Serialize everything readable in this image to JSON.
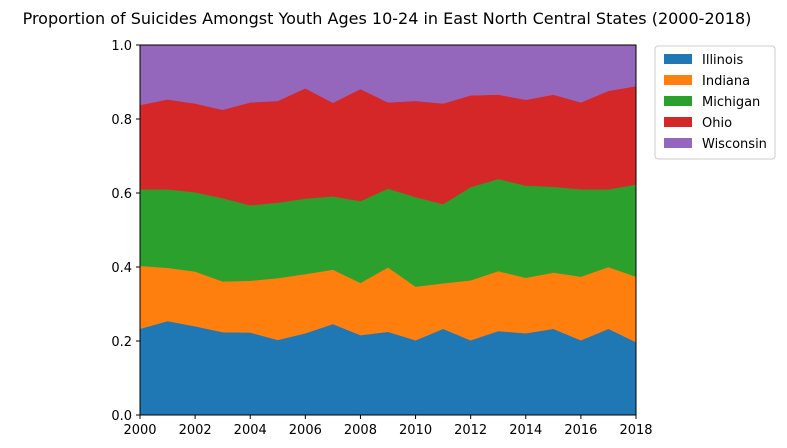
{
  "chart_data": {
    "type": "area",
    "stacked": true,
    "title": "Proportion of Suicides Amongst Youth Ages 10-24 in East North Central States (2000-2018)",
    "xlabel": "",
    "ylabel": "",
    "x": [
      2000,
      2001,
      2002,
      2003,
      2004,
      2005,
      2006,
      2007,
      2008,
      2009,
      2010,
      2011,
      2012,
      2013,
      2014,
      2015,
      2016,
      2017,
      2018
    ],
    "xticks": [
      "2000",
      "2002",
      "2004",
      "2006",
      "2008",
      "2010",
      "2012",
      "2014",
      "2016",
      "2018"
    ],
    "yticks": [
      "0.0",
      "0.2",
      "0.4",
      "0.6",
      "0.8",
      "1.0"
    ],
    "xlim": [
      2000,
      2018
    ],
    "ylim": [
      0,
      1
    ],
    "grid": false,
    "legend_position": "outside-top-right",
    "series": [
      {
        "name": "Illinois",
        "color": "#1f77b4",
        "values": [
          0.233,
          0.254,
          0.24,
          0.224,
          0.223,
          0.203,
          0.221,
          0.246,
          0.216,
          0.225,
          0.202,
          0.233,
          0.202,
          0.227,
          0.221,
          0.233,
          0.202,
          0.233,
          0.197
        ]
      },
      {
        "name": "Indiana",
        "color": "#ff7f0e",
        "values": [
          0.17,
          0.144,
          0.148,
          0.137,
          0.14,
          0.167,
          0.16,
          0.147,
          0.141,
          0.174,
          0.145,
          0.123,
          0.162,
          0.162,
          0.15,
          0.152,
          0.172,
          0.167,
          0.177
        ]
      },
      {
        "name": "Michigan",
        "color": "#2ca02c",
        "values": [
          0.207,
          0.212,
          0.214,
          0.225,
          0.204,
          0.204,
          0.204,
          0.198,
          0.221,
          0.213,
          0.242,
          0.214,
          0.252,
          0.249,
          0.249,
          0.232,
          0.236,
          0.21,
          0.249
        ]
      },
      {
        "name": "Ohio",
        "color": "#d62728",
        "values": [
          0.228,
          0.243,
          0.24,
          0.239,
          0.278,
          0.275,
          0.298,
          0.253,
          0.303,
          0.233,
          0.26,
          0.272,
          0.248,
          0.228,
          0.232,
          0.249,
          0.235,
          0.266,
          0.266
        ]
      },
      {
        "name": "Wisconsin",
        "color": "#9467bd",
        "values": [
          0.162,
          0.147,
          0.158,
          0.175,
          0.155,
          0.151,
          0.117,
          0.156,
          0.119,
          0.155,
          0.151,
          0.158,
          0.136,
          0.134,
          0.148,
          0.134,
          0.155,
          0.124,
          0.111
        ]
      }
    ]
  }
}
